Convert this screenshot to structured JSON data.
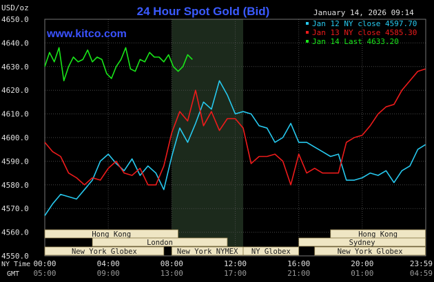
{
  "header": {
    "title": "24 Hour Spot Gold (Bid)",
    "unit": "USD/oz",
    "timestamp": "January 14, 2026 09:14",
    "website": "www.kitco.com"
  },
  "colors": {
    "background": "#000000",
    "grid": "#4a4a4a",
    "highlight_band": "#1c2a1c",
    "title": "#3b5bff",
    "website": "#3a52ff",
    "axis_text": "#e0e0e0",
    "session_box_bg": "#efe6c4",
    "session_box_text": "#1a1a1a",
    "jan12": "#27c9ef",
    "jan13": "#ee1b1b",
    "jan14": "#19e619"
  },
  "legend": {
    "items": [
      {
        "label": "Jan 12 NY close 4597.70",
        "color": "#27c9ef"
      },
      {
        "label": "Jan 13 NY close 4585.30",
        "color": "#ee1b1b"
      },
      {
        "label": "Jan 14 Last 4633.20",
        "color": "#19e619"
      }
    ]
  },
  "sessions": [
    {
      "name": "Hong Kong",
      "row": 0,
      "start": 0,
      "end": 8.4
    },
    {
      "name": "Hong Kong",
      "row": 0,
      "start": 18.0,
      "end": 23.98
    },
    {
      "name": "London",
      "row": 1,
      "start": 3.0,
      "end": 11.5
    },
    {
      "name": "Sydney",
      "row": 1,
      "start": 16.0,
      "end": 23.98
    },
    {
      "name": "New York Globex",
      "row": 2,
      "start": 0,
      "end": 7.5
    },
    {
      "name": "New York NYMEX",
      "row": 2,
      "start": 8.0,
      "end": 12.5
    },
    {
      "name": "NY Globex",
      "row": 2,
      "start": 12.5,
      "end": 16.0
    },
    {
      "name": "New York Globex",
      "row": 2,
      "start": 17.0,
      "end": 23.98
    }
  ],
  "x_axis": {
    "row1_label": "NY Time",
    "row2_label": "GMT",
    "ny_ticks": [
      "00:00",
      "04:00",
      "08:00",
      "12:00",
      "16:00",
      "20:00",
      "23:59"
    ],
    "gmt_ticks": [
      "05:00",
      "09:00",
      "13:00",
      "17:00",
      "21:00",
      "01:00",
      "04:59"
    ]
  },
  "chart_data": {
    "type": "line",
    "title": "24 Hour Spot Gold (Bid)",
    "ylabel": "USD/oz",
    "xlabel": "NY Time",
    "ylim": [
      4550,
      4650
    ],
    "xlim": [
      0,
      24
    ],
    "y_ticks": [
      "4650.0",
      "4640.0",
      "4630.0",
      "4620.0",
      "4610.0",
      "4600.0",
      "4590.0",
      "4580.0",
      "4570.0",
      "4560.0",
      "4550.0"
    ],
    "highlight_x": [
      8.0,
      12.5
    ],
    "grid": true,
    "legend_position": "top-right",
    "series": [
      {
        "name": "Jan 12 NY close 4597.70",
        "color": "#27c9ef",
        "x": [
          0,
          0.5,
          1.0,
          1.5,
          2.0,
          2.5,
          3.0,
          3.5,
          4.0,
          4.5,
          5.0,
          5.5,
          6.0,
          6.5,
          7.0,
          7.5,
          8.0,
          8.5,
          9.0,
          9.5,
          10.0,
          10.5,
          11.0,
          11.5,
          12.0,
          12.5,
          13.0,
          13.5,
          14.0,
          14.5,
          15.0,
          15.5,
          16.0,
          16.5,
          17.0,
          17.5,
          18.0,
          18.5,
          19.0,
          19.5,
          20.0,
          20.5,
          21.0,
          21.5,
          22.0,
          22.5,
          23.0,
          23.5,
          23.98
        ],
        "y": [
          4567,
          4572,
          4576,
          4575,
          4574,
          4578,
          4582,
          4590,
          4593,
          4589,
          4586,
          4591,
          4584,
          4588,
          4585,
          4578,
          4592,
          4604,
          4598,
          4606,
          4615,
          4612,
          4624,
          4618,
          4610,
          4611,
          4610,
          4605,
          4604,
          4598,
          4600,
          4606,
          4598,
          4598,
          4596,
          4594,
          4592,
          4593,
          4582,
          4582,
          4583,
          4585,
          4584,
          4586,
          4581,
          4586,
          4588,
          4595,
          4597
        ]
      },
      {
        "name": "Jan 13 NY close 4585.30",
        "color": "#ee1b1b",
        "x": [
          0,
          0.5,
          1.0,
          1.5,
          2.0,
          2.5,
          3.0,
          3.5,
          4.0,
          4.5,
          5.0,
          5.5,
          6.0,
          6.5,
          7.0,
          7.5,
          8.0,
          8.5,
          9.0,
          9.5,
          10.0,
          10.5,
          11.0,
          11.5,
          12.0,
          12.5,
          13.0,
          13.5,
          14.0,
          14.5,
          15.0,
          15.5,
          16.0,
          16.5,
          17.0,
          17.5,
          18.0,
          18.5,
          19.0,
          19.5,
          20.0,
          20.5,
          21.0,
          21.5,
          22.0,
          22.5,
          23.0,
          23.5,
          23.98
        ],
        "y": [
          4598,
          4594,
          4592,
          4585,
          4583,
          4580,
          4583,
          4582,
          4587,
          4590,
          4585,
          4584,
          4587,
          4580,
          4580,
          4588,
          4602,
          4611,
          4607,
          4620,
          4605,
          4611,
          4603,
          4608,
          4608,
          4604,
          4589,
          4592,
          4592,
          4593,
          4590,
          4580,
          4593,
          4585,
          4587,
          4585,
          4585,
          4585,
          4598,
          4600,
          4601,
          4605,
          4610,
          4613,
          4614,
          4620,
          4624,
          4628,
          4629
        ]
      },
      {
        "name": "Jan 14 Last 4633.20",
        "color": "#19e619",
        "x": [
          0,
          0.3,
          0.6,
          0.9,
          1.2,
          1.5,
          1.8,
          2.1,
          2.4,
          2.7,
          3.0,
          3.3,
          3.6,
          3.9,
          4.2,
          4.5,
          4.8,
          5.1,
          5.4,
          5.7,
          6.0,
          6.3,
          6.6,
          6.9,
          7.2,
          7.5,
          7.8,
          8.1,
          8.4,
          8.7,
          9.0,
          9.3
        ],
        "y": [
          4630,
          4636,
          4632,
          4638,
          4624,
          4630,
          4634,
          4632,
          4633,
          4637,
          4632,
          4634,
          4633,
          4627,
          4625,
          4630,
          4633,
          4638,
          4629,
          4628,
          4633,
          4632,
          4636,
          4634,
          4634,
          4632,
          4635,
          4630,
          4628,
          4630,
          4635,
          4633
        ]
      }
    ]
  }
}
